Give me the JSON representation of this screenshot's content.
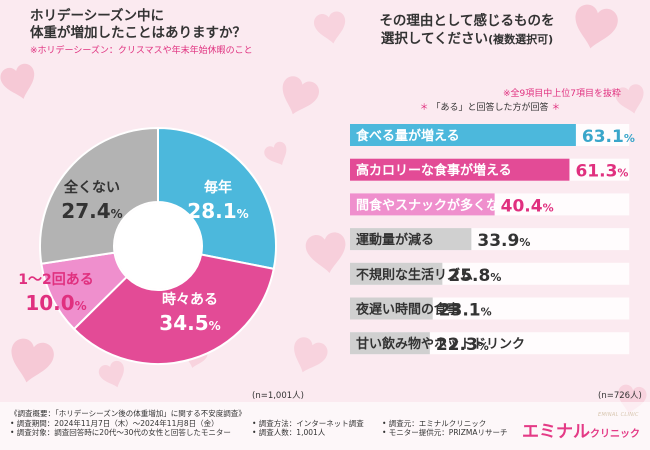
{
  "left_panel": {
    "question_line1": "ホリデーシーズン中に",
    "question_line2": "体重が増加したことはありますか？",
    "note": "※ホリデーシーズン：クリスマスや年末年始休暇のこと",
    "sample_size": "(n=1,001人)"
  },
  "right_panel": {
    "question_line1": "その理由として感じるものを",
    "question_line2": "選択してください",
    "question_suffix": "(複数選択可)",
    "note_top": "※全9項目中上位7項目を抜粋",
    "note_bottom_prefix": "＊",
    "note_bottom": "「ある」と回答した方が回答",
    "note_bottom_suffix": "＊",
    "sample_size": "(n=726人)"
  },
  "colors": {
    "blue": "#4cb8dc",
    "pink": "#e34b96",
    "light_pink": "#ef8fcd",
    "gray": "#b3b3b3",
    "accent_pink": "#e0307f"
  },
  "chart_data": [
    {
      "type": "pie",
      "title": "ホリデーシーズン中に体重が増加したことはありますか？",
      "categories": [
        "毎年",
        "時々ある",
        "1〜2回ある",
        "全くない"
      ],
      "values": [
        28.1,
        34.5,
        10.0,
        27.4
      ],
      "value_labels": [
        "28.1%",
        "34.5%",
        "10.0%",
        "27.4%"
      ],
      "unit": "%"
    },
    {
      "type": "bar",
      "orientation": "horizontal",
      "title": "その理由として感じるものを選択してください(複数選択可)",
      "categories": [
        "食べる量が増える",
        "高カロリーな食事が増える",
        "間食やスナックが多くなる",
        "運動量が減る",
        "不規則な生活リズム",
        "夜遅い時間の食事",
        "甘い飲み物やホットドリンク"
      ],
      "values": [
        63.1,
        61.3,
        40.4,
        33.9,
        25.8,
        23.1,
        22.3
      ],
      "value_labels": [
        "63.1%",
        "61.3%",
        "40.4%",
        "33.9%",
        "25.8%",
        "23.1%",
        "22.3%"
      ],
      "xlim": [
        0,
        100
      ],
      "unit": "%"
    }
  ],
  "footer": {
    "line1": "《調査概要：「ホリデーシーズン後の体重増加」に関する不安度調査》",
    "period": "• 調査期間：2024年11月7日（木）〜2024年11月8日（金）",
    "method": "• 調査方法：インターネット調査",
    "organizer": "• 調査元：エミナルクリニック",
    "target": "• 調査対象：調査回答時に20代〜30代の女性と回答したモニター",
    "count": "• 調査人数：1,001人",
    "provider": "• モニター提供元：PRIZMAリサーチ"
  },
  "brand": {
    "main": "エミナル",
    "suffix": "クリニック",
    "sub": "EMINAL CLINIC"
  }
}
